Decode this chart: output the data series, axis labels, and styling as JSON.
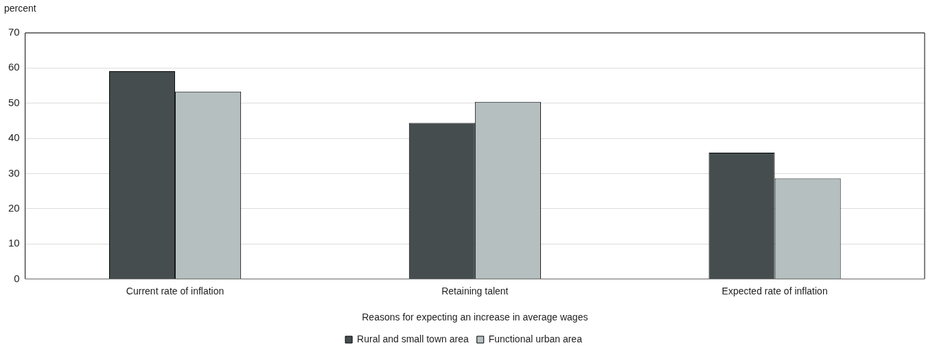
{
  "chart_data": {
    "type": "bar",
    "ylabel": "percent",
    "xlabel": "Reasons for expecting an increase in average wages",
    "categories": [
      "Current rate of inflation",
      "Retaining talent",
      "Expected rate of inflation"
    ],
    "series": [
      {
        "name": "Rural and small town area",
        "color": "#454d4f",
        "values": [
          59.1,
          44.4,
          35.9
        ]
      },
      {
        "name": "Functional urban area",
        "color": "#b5bfc0",
        "values": [
          53.3,
          50.4,
          28.6
        ]
      }
    ],
    "ylim": [
      0,
      70
    ],
    "yticks": [
      0,
      10,
      20,
      30,
      40,
      50,
      60,
      70
    ],
    "grid": "y",
    "legend": "bottom"
  }
}
